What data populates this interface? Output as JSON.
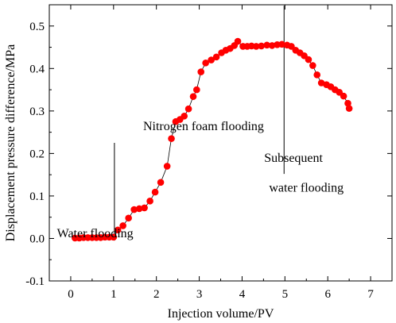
{
  "chart_data": {
    "type": "scatter",
    "xlabel": "Injection volume/PV",
    "ylabel": "Displacement pressure difference/MPa",
    "xlim": [
      -0.5,
      7.5
    ],
    "ylim": [
      -0.1,
      0.55
    ],
    "xticks": [
      "0",
      "1",
      "2",
      "3",
      "4",
      "5",
      "6",
      "7"
    ],
    "yticks": [
      "-0.1",
      "0.0",
      "0.1",
      "0.2",
      "0.3",
      "0.4",
      "0.5"
    ],
    "grid": false,
    "legend": "none",
    "marker_color": "#ff0000",
    "annotations": [
      {
        "text": "Water flooding",
        "x": 0.57,
        "y": 0.003
      },
      {
        "text": "Nitrogen foam flooding",
        "x": 3.1,
        "y": 0.255
      },
      {
        "text": "Subsequent",
        "x": 5.2,
        "y": 0.18
      },
      {
        "text": "water flooding",
        "x": 5.5,
        "y": 0.11
      }
    ],
    "dividers": [
      {
        "x": 1.02,
        "y_from": -0.005,
        "y_to": 0.225
      },
      {
        "x": 4.98,
        "y_from": 0.152,
        "y_to": 0.548
      }
    ],
    "series": [
      {
        "x": [
          0.1,
          0.2,
          0.3,
          0.4,
          0.5,
          0.6,
          0.7,
          0.8,
          0.9,
          1.0,
          1.1,
          1.22,
          1.35,
          1.48,
          1.6,
          1.72,
          1.85,
          1.97,
          2.1,
          2.25,
          2.35,
          2.45,
          2.55,
          2.65,
          2.75,
          2.86,
          2.94,
          3.04,
          3.15,
          3.28,
          3.4,
          3.52,
          3.62,
          3.72,
          3.82,
          3.9,
          4.02,
          4.12,
          4.22,
          4.33,
          4.45,
          4.58,
          4.7,
          4.82,
          4.93,
          5.05,
          5.15,
          5.25,
          5.35,
          5.45,
          5.55,
          5.65,
          5.75,
          5.85,
          5.97,
          6.07,
          6.17,
          6.27,
          6.37,
          6.47,
          6.5
        ],
        "y": [
          0.001,
          0.001,
          0.002,
          0.002,
          0.002,
          0.002,
          0.002,
          0.003,
          0.003,
          0.003,
          0.02,
          0.03,
          0.048,
          0.068,
          0.07,
          0.072,
          0.088,
          0.109,
          0.132,
          0.17,
          0.235,
          0.275,
          0.28,
          0.288,
          0.305,
          0.334,
          0.35,
          0.392,
          0.413,
          0.42,
          0.427,
          0.437,
          0.443,
          0.447,
          0.454,
          0.464,
          0.452,
          0.452,
          0.453,
          0.452,
          0.453,
          0.455,
          0.454,
          0.456,
          0.457,
          0.455,
          0.452,
          0.443,
          0.437,
          0.43,
          0.421,
          0.407,
          0.385,
          0.366,
          0.362,
          0.357,
          0.35,
          0.344,
          0.335,
          0.318,
          0.306
        ]
      }
    ]
  }
}
